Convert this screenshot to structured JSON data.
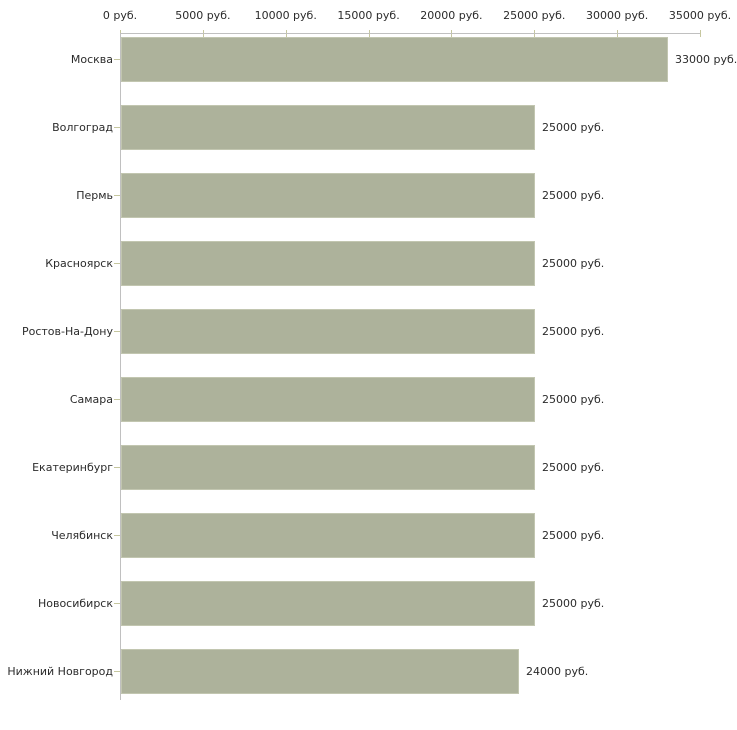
{
  "chart_data": {
    "type": "bar",
    "orientation": "horizontal",
    "title": "",
    "xlabel": "",
    "ylabel": "",
    "categories": [
      "Москва",
      "Волгоград",
      "Пермь",
      "Красноярск",
      "Ростов-На-Дону",
      "Самара",
      "Екатеринбург",
      "Челябинск",
      "Новосибирск",
      "Нижний Новгород"
    ],
    "values": [
      33000,
      25000,
      25000,
      25000,
      25000,
      25000,
      25000,
      25000,
      25000,
      24000
    ],
    "value_labels": [
      "33000 руб.",
      "25000 руб.",
      "25000 руб.",
      "25000 руб.",
      "25000 руб.",
      "25000 руб.",
      "25000 руб.",
      "25000 руб.",
      "25000 руб.",
      "24000 руб."
    ],
    "x_tick_labels": [
      "0 руб.",
      "5000 руб.",
      "10000 руб.",
      "15000 руб.",
      "20000 руб.",
      "25000 руб.",
      "30000 руб.",
      "35000 руб."
    ],
    "xlim": [
      0,
      35000
    ],
    "x_tick_step": 5000,
    "grid": false,
    "legend": false,
    "colors": {
      "bar_fill": "#adb29b",
      "bar_edge": "#c2c6b0",
      "axis_line": "#c0c0c0",
      "tick_mark": "#c6c79f",
      "text": "#2b2b2b",
      "background": "#ffffff"
    }
  }
}
